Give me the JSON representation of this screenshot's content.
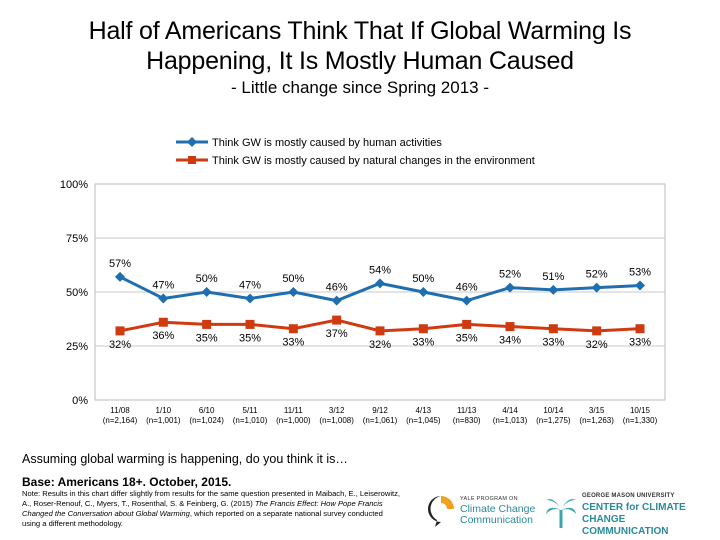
{
  "title_line1": "Half of Americans Think That If Global Warming Is",
  "title_line2": "Happening, It Is Mostly Human Caused",
  "subtitle": "- Little change since Spring 2013 -",
  "question": "Assuming global warming is happening, do you think it is…",
  "base": "Base: Americans 18+. October, 2015.",
  "note_a": "Note: Results in this chart differ slightly from results for the same question presented in Maibach, E., Leiserowitz, A., Roser-Renouf, C., Myers, T., Rosenthal, S. & Feinberg, G. (2015) ",
  "note_title": "The Francis Effect: How Pope Francis Changed the Conversation about Global Warming",
  "note_b": ", which reported on a separate national survey conducted using a different methodology.",
  "logo_left": {
    "small": "YALE PROGRAM ON",
    "line1": "Climate Change",
    "line2": "Communication"
  },
  "logo_right": {
    "small": "GEORGE MASON UNIVERSITY",
    "line1": "CENTER for CLIMATE CHANGE",
    "line2": "COMMUNICATION"
  },
  "colors": {
    "human": "#1f6fb0",
    "natural": "#cf3a10",
    "grid": "#c8c8c8"
  },
  "chart_data": {
    "type": "line",
    "categories": [
      "11/08",
      "1/10",
      "6/10",
      "5/11",
      "11/11",
      "3/12",
      "9/12",
      "4/13",
      "11/13",
      "4/14",
      "10/14",
      "3/15",
      "10/15"
    ],
    "category_sublabels": [
      "(n=2,164)",
      "(n=1,001)",
      "(n=1,024)",
      "(n=1,010)",
      "(n=1,000)",
      "(n=1,008)",
      "(n=1,061)",
      "(n=1,045)",
      "(n=830)",
      "(n=1,013)",
      "(n=1,275)",
      "(n=1,263)",
      "(n=1,330)"
    ],
    "series": [
      {
        "name": "Think GW is mostly caused by human activities",
        "values": [
          57,
          47,
          50,
          47,
          50,
          46,
          54,
          50,
          46,
          52,
          51,
          52,
          53
        ],
        "labels": [
          "57%",
          "47%",
          "50%",
          "47%",
          "50%",
          "46%",
          "54%",
          "50%",
          "46%",
          "52%",
          "51%",
          "52%",
          "53%"
        ],
        "marker": "diamond"
      },
      {
        "name": "Think GW is mostly caused by natural changes in the environment",
        "values": [
          32,
          36,
          35,
          35,
          33,
          37,
          32,
          33,
          35,
          34,
          33,
          32,
          33
        ],
        "labels": [
          "32%",
          "36%",
          "35%",
          "35%",
          "33%",
          "37%",
          "32%",
          "33%",
          "35%",
          "34%",
          "33%",
          "32%",
          "33%"
        ],
        "marker": "square"
      }
    ],
    "yticks": [
      "0%",
      "25%",
      "50%",
      "75%",
      "100%"
    ],
    "ylim": [
      0,
      100
    ],
    "grid": true,
    "legend": "top-center"
  }
}
